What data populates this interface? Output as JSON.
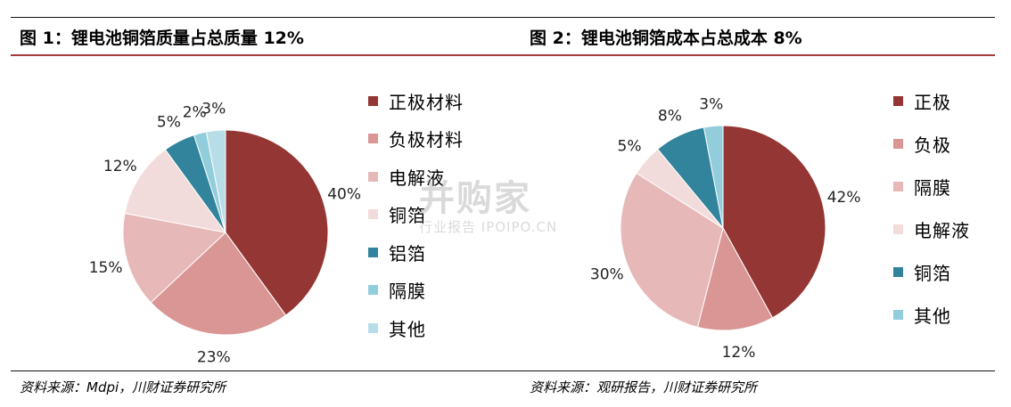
{
  "figures": [
    {
      "title": "图 1：锂电池铜箔质量占总质量 12%",
      "source": "资料来源：Mdpi，川财证券研究所"
    },
    {
      "title": "图 2：锂电池铜箔成本占总成本 8%",
      "source": "资料来源：观研报告，川财证券研究所"
    }
  ],
  "watermark": {
    "main": "并购家",
    "sub": "行业报告 IPOIPO.CN"
  },
  "chart_data": [
    {
      "type": "pie",
      "title": "图 1：锂电池铜箔质量占总质量 12%",
      "legend_position": "right",
      "unit": "%",
      "categories": [
        "正极材料",
        "负极材料",
        "电解液",
        "铜箔",
        "铝箔",
        "隔膜",
        "其他"
      ],
      "values": [
        40,
        23,
        15,
        12,
        5,
        2,
        3
      ],
      "labels": [
        "40%",
        "23%",
        "15%",
        "12%",
        "5%",
        "2%",
        "3%"
      ],
      "colors": [
        "#943634",
        "#d99694",
        "#e6b9b8",
        "#f2dcdb",
        "#31849b",
        "#92cddc",
        "#b7dee8"
      ]
    },
    {
      "type": "pie",
      "title": "图 2：锂电池铜箔成本占总成本 8%",
      "legend_position": "right",
      "unit": "%",
      "categories": [
        "正极",
        "负极",
        "隔膜",
        "电解液",
        "铜箔",
        "其他"
      ],
      "values": [
        42,
        12,
        30,
        5,
        8,
        3
      ],
      "labels": [
        "42%",
        "12%",
        "30%",
        "5%",
        "8%",
        "3%"
      ],
      "colors": [
        "#943634",
        "#d99694",
        "#e6b9b8",
        "#f2dcdb",
        "#31849b",
        "#92cddc"
      ]
    }
  ]
}
